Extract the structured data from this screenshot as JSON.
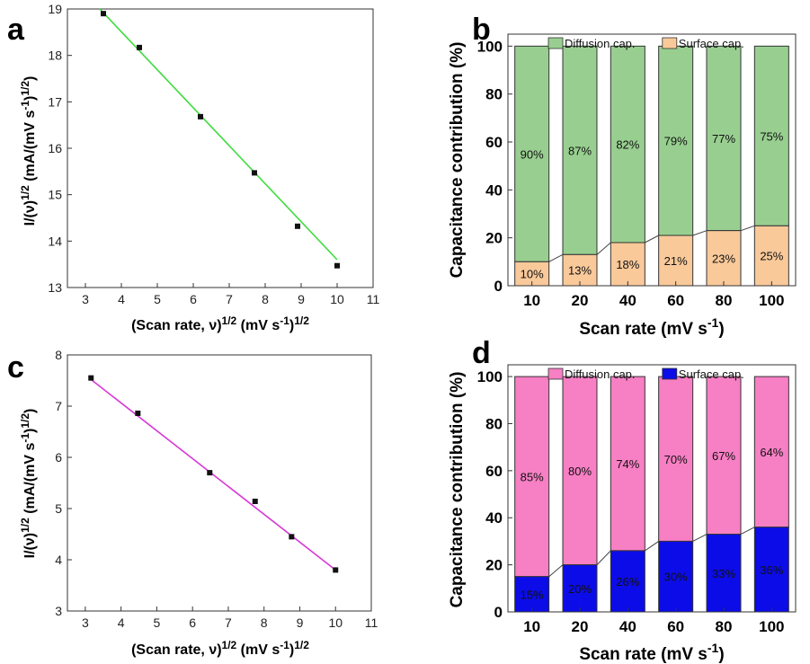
{
  "panels": {
    "a": "a",
    "b": "b",
    "c": "c",
    "d": "d"
  },
  "chart_data": [
    {
      "type": "scatter",
      "id": "a",
      "x": [
        3.5,
        4.5,
        6.2,
        7.7,
        8.9,
        10.0
      ],
      "y": [
        18.9,
        18.17,
        16.68,
        15.47,
        14.32,
        13.47
      ],
      "fit_line": [
        [
          3.4,
          19.0
        ],
        [
          10.0,
          13.6
        ]
      ],
      "line_color": "#3ddc3d",
      "xlim": [
        2.5,
        11
      ],
      "ylim": [
        13,
        19
      ],
      "xticks": [
        "3",
        "4",
        "5",
        "6",
        "7",
        "8",
        "9",
        "10",
        "11"
      ],
      "yticks": [
        "13",
        "14",
        "15",
        "16",
        "17",
        "18",
        "19"
      ],
      "ylabel_main": "I/(ν)",
      "ylabel_sup1": "1/2",
      "ylabel_mid": " (mA/(mV s",
      "ylabel_sup2": "-1",
      "ylabel_end": ")",
      "ylabel_sup3": "1/2",
      "ylabel_close": ")",
      "xlabel_main": "(Scan rate, ν)",
      "xlabel_sup1": "1/2",
      "xlabel_mid": " (mV s",
      "xlabel_sup2": "-1",
      "xlabel_end": ")",
      "xlabel_sup3": "1/2"
    },
    {
      "type": "bar",
      "id": "b",
      "categories": [
        "10",
        "20",
        "40",
        "60",
        "80",
        "100"
      ],
      "series": [
        {
          "name": "Surface cap.",
          "values": [
            10,
            13,
            18,
            21,
            23,
            25
          ],
          "color": "#f9c99a",
          "labels": [
            "10%",
            "13%",
            "18%",
            "21%",
            "23%",
            "25%"
          ]
        },
        {
          "name": "Diffusion cap.",
          "values": [
            90,
            87,
            82,
            79,
            77,
            75
          ],
          "color": "#98cf90",
          "labels": [
            "90%",
            "87%",
            "82%",
            "79%",
            "77%",
            "75%"
          ]
        }
      ],
      "legend_order": [
        "Diffusion cap.",
        "Surface cap."
      ],
      "ylim": [
        0,
        105
      ],
      "yticks": [
        "0",
        "20",
        "40",
        "60",
        "80",
        "100"
      ],
      "ylabel": "Capacitance contribution (%)",
      "xlabel_main": "Scan rate (mV s",
      "xlabel_sup": "-1",
      "xlabel_end": ")",
      "surface_text_color": "#111111"
    },
    {
      "type": "scatter",
      "id": "c",
      "x": [
        3.16,
        4.47,
        6.48,
        7.75,
        8.77,
        10.0
      ],
      "y": [
        7.55,
        6.86,
        5.7,
        5.14,
        4.45,
        3.8
      ],
      "fit_line": [
        [
          3.16,
          7.52
        ],
        [
          10.0,
          3.8
        ]
      ],
      "line_color": "#d63ad6",
      "xlim": [
        2.5,
        11
      ],
      "ylim": [
        3,
        8
      ],
      "xticks": [
        "3",
        "4",
        "5",
        "6",
        "7",
        "8",
        "9",
        "10",
        "11"
      ],
      "yticks": [
        "3",
        "4",
        "5",
        "6",
        "7",
        "8"
      ],
      "ylabel_main": "I/(ν)",
      "ylabel_sup1": "1/2",
      "ylabel_mid": " (mA/(mV s",
      "ylabel_sup2": "-1",
      "ylabel_end": ")",
      "ylabel_sup3": "1/2",
      "ylabel_close": ")",
      "xlabel_main": "(Scan rate, ν)",
      "xlabel_sup1": "1/2",
      "xlabel_mid": " (mV s",
      "xlabel_sup2": "-1",
      "xlabel_end": ")",
      "xlabel_sup3": "1/2"
    },
    {
      "type": "bar",
      "id": "d",
      "categories": [
        "10",
        "20",
        "40",
        "60",
        "80",
        "100"
      ],
      "series": [
        {
          "name": "Surface cap.",
          "values": [
            15,
            20,
            26,
            30,
            33,
            36
          ],
          "color": "#0c0ce8",
          "labels": [
            "15%",
            "20%",
            "26%",
            "30%",
            "33%",
            "36%"
          ]
        },
        {
          "name": "Diffusion cap.",
          "values": [
            85,
            80,
            74,
            70,
            67,
            64
          ],
          "color": "#f77fc4",
          "labels": [
            "85%",
            "80%",
            "74%",
            "70%",
            "67%",
            "64%"
          ]
        }
      ],
      "legend_order": [
        "Diffusion cap.",
        "Surface cap."
      ],
      "ylim": [
        0,
        105
      ],
      "yticks": [
        "0",
        "20",
        "40",
        "60",
        "80",
        "100"
      ],
      "ylabel": "Capacitance contribution (%)",
      "xlabel_main": "Scan rate (mV s",
      "xlabel_sup": "-1",
      "xlabel_end": ")",
      "surface_text_color": "#ffffff"
    }
  ]
}
